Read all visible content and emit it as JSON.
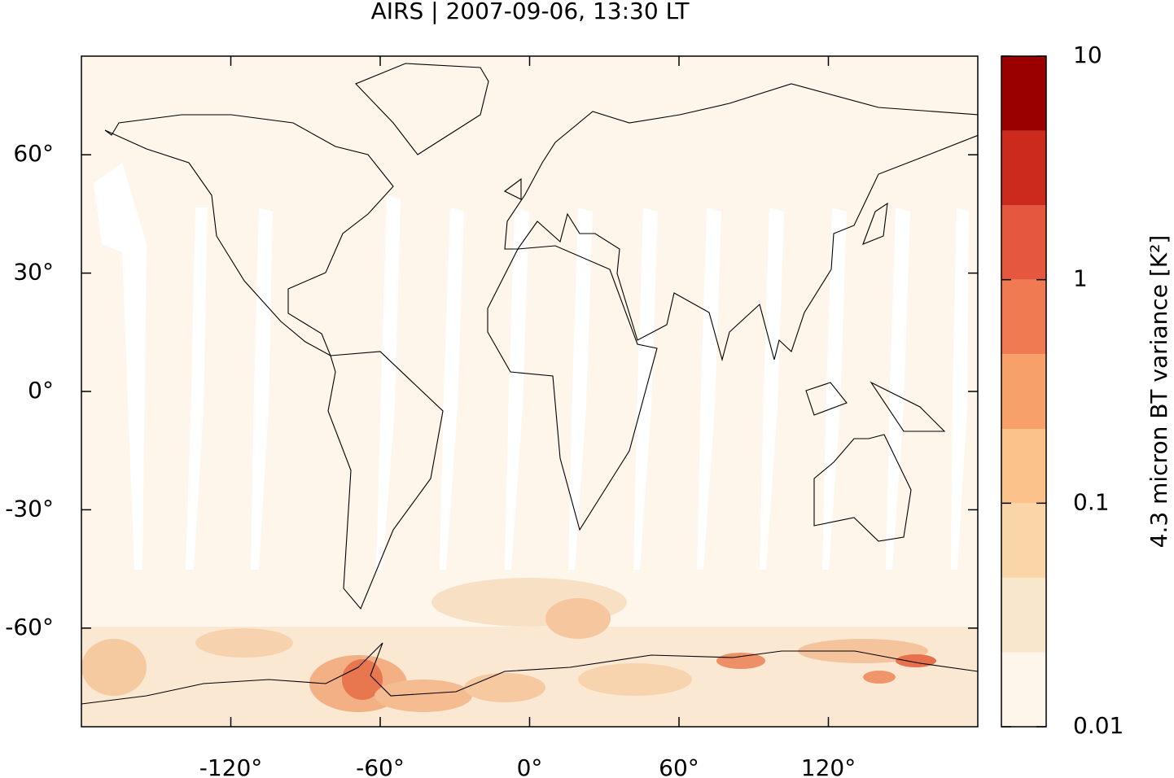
{
  "chart_data": {
    "type": "map",
    "title": "AIRS | 2007-09-06, 13:30 LT",
    "xlim": [
      -180,
      180
    ],
    "ylim": [
      -85,
      85
    ],
    "xticks": [
      {
        "value": -120,
        "label": "-120°"
      },
      {
        "value": -60,
        "label": "-60°"
      },
      {
        "value": 0,
        "label": "0°"
      },
      {
        "value": 60,
        "label": "60°"
      },
      {
        "value": 120,
        "label": "120°"
      }
    ],
    "yticks": [
      {
        "value": -60,
        "label": "-60°"
      },
      {
        "value": -30,
        "label": "-30°"
      },
      {
        "value": 0,
        "label": "0°"
      },
      {
        "value": 30,
        "label": "30°"
      },
      {
        "value": 60,
        "label": "60°"
      }
    ],
    "colorbar": {
      "label": "4.3 micron BT variance [K²]",
      "scale": "log",
      "lim": [
        0.01,
        10
      ],
      "ticks": [
        0.01,
        0.1,
        1,
        10
      ],
      "levels": [
        0.01,
        0.0215,
        0.0464,
        0.1,
        0.215,
        0.464,
        1,
        2.15,
        4.64,
        10
      ],
      "colors": [
        "#fef5eb",
        "#f8e6cd",
        "#f9d5a8",
        "#fbc28b",
        "#f8a06a",
        "#f07a52",
        "#e5573e",
        "#cb2a1d",
        "#9b0000"
      ]
    }
  }
}
